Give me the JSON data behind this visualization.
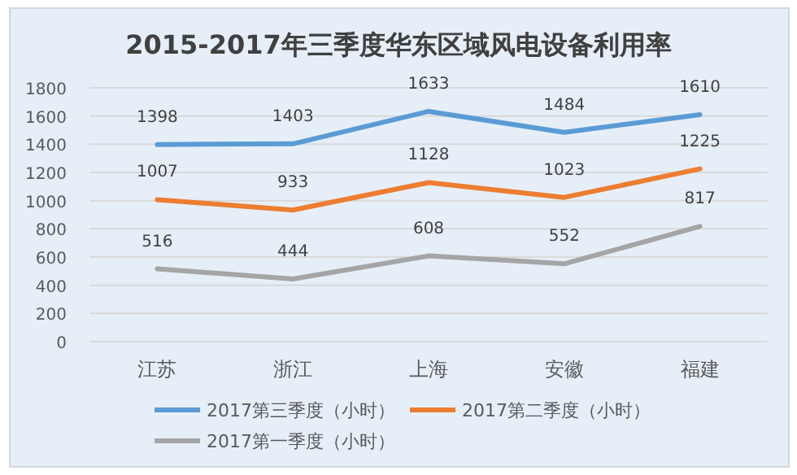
{
  "chart_data": {
    "type": "line",
    "title": "2015-2017年三季度华东区域风电设备利用率",
    "categories": [
      "江苏",
      "浙江",
      "上海",
      "安徽",
      "福建"
    ],
    "series": [
      {
        "name": "2017第三季度（小时）",
        "color": "#5b9bd5",
        "values": [
          1398,
          1403,
          1633,
          1484,
          1610
        ]
      },
      {
        "name": "2017第二季度（小时）",
        "color": "#ed7d31",
        "values": [
          1007,
          933,
          1128,
          1023,
          1225
        ]
      },
      {
        "name": "2017第一季度（小时）",
        "color": "#a5a5a5",
        "values": [
          516,
          444,
          608,
          552,
          817
        ]
      }
    ],
    "ylim": [
      0,
      1800
    ],
    "yticks": [
      0,
      200,
      400,
      600,
      800,
      1000,
      1200,
      1400,
      1600,
      1800
    ],
    "grid": "y",
    "legend": "bottom",
    "data_labels": true,
    "marker": "none",
    "line_style": "solid"
  }
}
